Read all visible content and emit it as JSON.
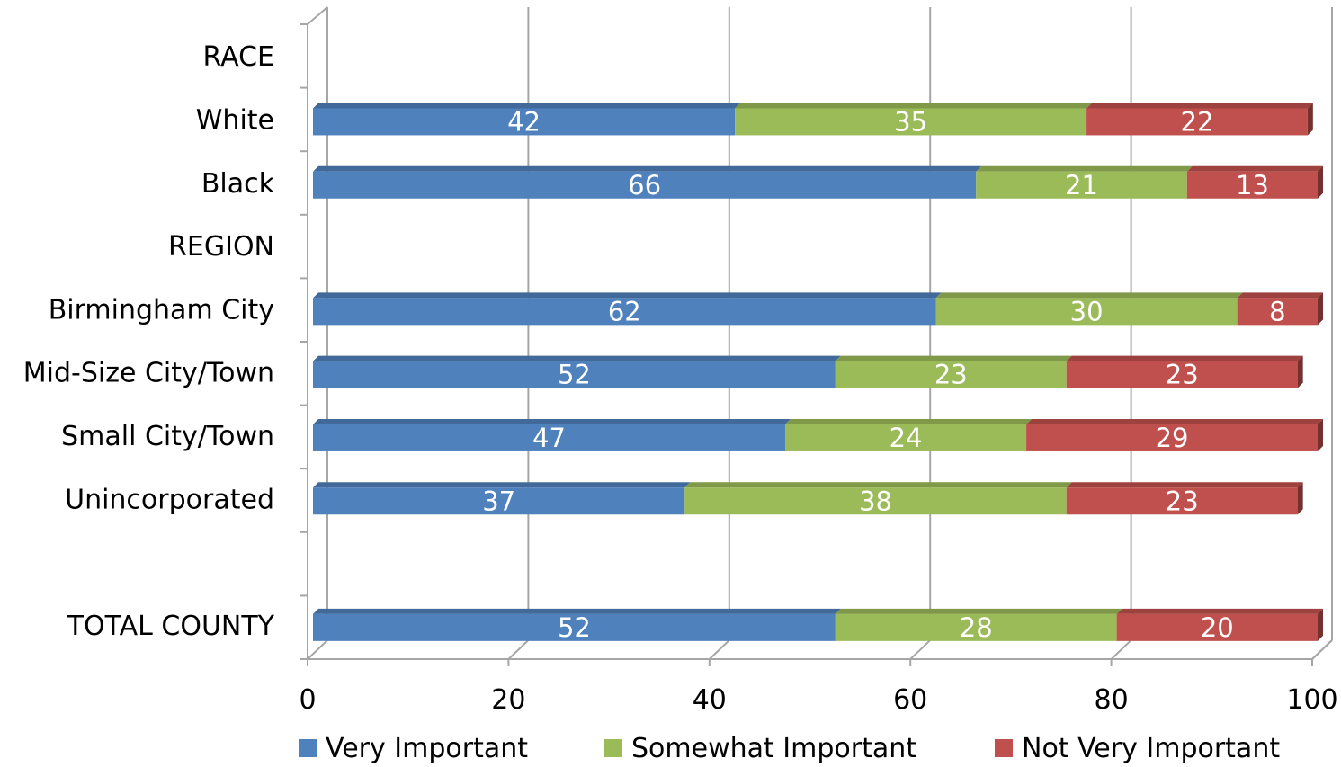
{
  "chart_data": {
    "type": "bar",
    "orientation": "horizontal",
    "stacked": true,
    "three_d": true,
    "categories": [
      "RACE",
      "White",
      "Black",
      "REGION",
      "Birmingham City",
      "Mid-Size City/Town",
      "Small City/Town",
      "Unincorporated",
      "",
      "TOTAL COUNTY"
    ],
    "series": [
      {
        "name": "Very Important",
        "color": "#4f81bd",
        "values": [
          null,
          42,
          66,
          null,
          62,
          52,
          47,
          37,
          null,
          52
        ]
      },
      {
        "name": "Somewhat Important",
        "color": "#9bbb59",
        "values": [
          null,
          35,
          21,
          null,
          30,
          23,
          24,
          38,
          null,
          28
        ]
      },
      {
        "name": "Not Very Important",
        "color": "#c0504d",
        "values": [
          null,
          22,
          13,
          null,
          8,
          23,
          29,
          23,
          null,
          20
        ]
      }
    ],
    "xlim": [
      0,
      100
    ],
    "x_ticks": [
      "0",
      "20",
      "40",
      "60",
      "80",
      "100"
    ],
    "grid": "vertical",
    "legend": "bottom"
  }
}
